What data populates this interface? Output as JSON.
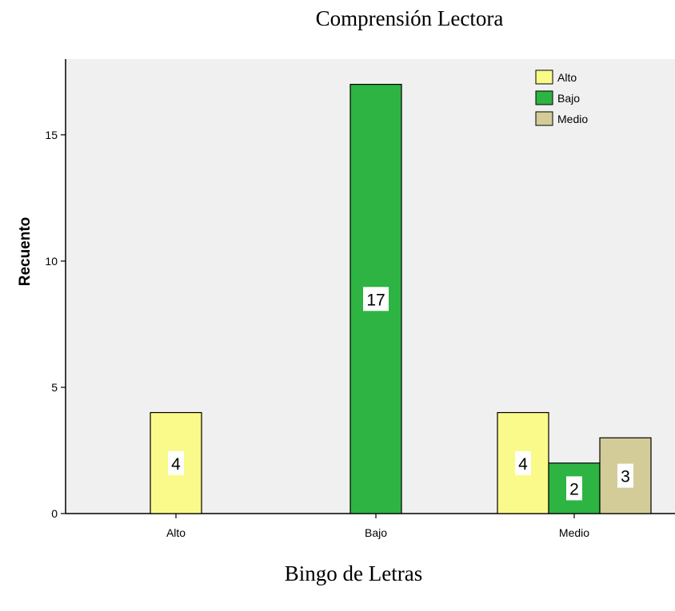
{
  "header": {
    "title": "Comprensión Lectora"
  },
  "footer": {
    "xaxis_title": "Bingo de Letras"
  },
  "chart_data": {
    "type": "bar",
    "categories": [
      "Alto",
      "Bajo",
      "Medio"
    ],
    "series": [
      {
        "name": "Alto",
        "color": "#fafa8a",
        "values": [
          4,
          0,
          4
        ]
      },
      {
        "name": "Bajo",
        "color": "#2db442",
        "values": [
          0,
          17,
          2
        ]
      },
      {
        "name": "Medio",
        "color": "#d4cc98",
        "values": [
          0,
          0,
          3
        ]
      }
    ],
    "ylabel": "Recuento",
    "xlabel": "Bingo de Letras",
    "ylim": [
      0,
      18
    ],
    "yticks": [
      0,
      5,
      10,
      15
    ],
    "plot_background": "#f0f0f0",
    "legend": {
      "placement": "top-right",
      "entries": [
        "Alto",
        "Bajo",
        "Medio"
      ]
    },
    "data_labels": true
  }
}
